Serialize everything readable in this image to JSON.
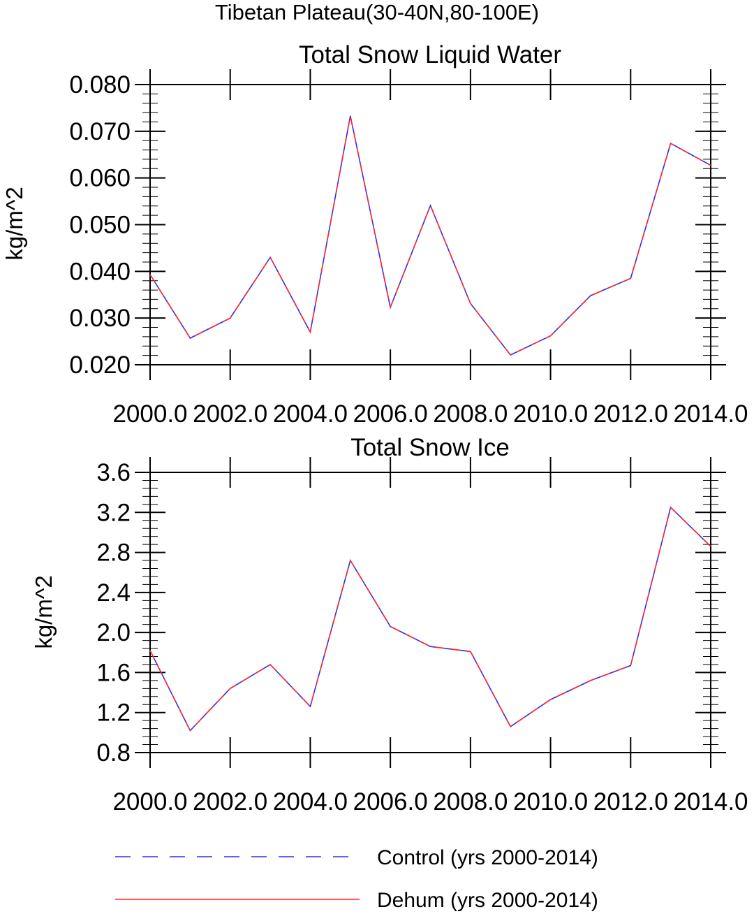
{
  "figure_title": "Tibetan Plateau(30-40N,80-100E)",
  "colors": {
    "control": "#2a2aff",
    "dehum": "#ff2a2a"
  },
  "legend": [
    {
      "key": "control",
      "label": "Control (yrs 2000-2014)",
      "style": "dashed"
    },
    {
      "key": "dehum",
      "label": "Dehum (yrs 2000-2014)",
      "style": "solid"
    }
  ],
  "chart_data": [
    {
      "type": "line",
      "title": "Total Snow Liquid Water",
      "xlabel": "",
      "ylabel": "kg/m^2",
      "xlim": [
        2000,
        2014
      ],
      "ylim": [
        0.02,
        0.08
      ],
      "yticks": [
        0.02,
        0.03,
        0.04,
        0.05,
        0.06,
        0.07,
        0.08
      ],
      "ytick_labels": [
        "0.020",
        "0.030",
        "0.040",
        "0.050",
        "0.060",
        "0.070",
        "0.080"
      ],
      "xticks": [
        2000,
        2002,
        2004,
        2006,
        2008,
        2010,
        2012,
        2014
      ],
      "xtick_labels": [
        "2000.0",
        "2002.0",
        "2004.0",
        "2006.0",
        "2008.0",
        "2010.0",
        "2012.0",
        "2014.0"
      ],
      "x": [
        2000,
        2001,
        2002,
        2003,
        2004,
        2005,
        2006,
        2007,
        2008,
        2009,
        2010,
        2011,
        2012,
        2013,
        2014
      ],
      "series": [
        {
          "name": "Control (yrs 2000-2014)",
          "values": [
            0.0393,
            0.0257,
            0.03,
            0.043,
            0.027,
            0.0733,
            0.0323,
            0.0541,
            0.0331,
            0.0221,
            0.0262,
            0.0348,
            0.0385,
            0.0674,
            0.0627
          ]
        },
        {
          "name": "Dehum (yrs 2000-2014)",
          "values": [
            0.0393,
            0.0257,
            0.03,
            0.043,
            0.027,
            0.0733,
            0.0323,
            0.0541,
            0.0331,
            0.0221,
            0.0262,
            0.0348,
            0.0385,
            0.0674,
            0.0627
          ]
        }
      ]
    },
    {
      "type": "line",
      "title": "Total Snow Ice",
      "xlabel": "",
      "ylabel": "kg/m^2",
      "xlim": [
        2000,
        2014
      ],
      "ylim": [
        0.8,
        3.6
      ],
      "yticks": [
        0.8,
        1.2,
        1.6,
        2.0,
        2.4,
        2.8,
        3.2,
        3.6
      ],
      "ytick_labels": [
        "0.8",
        "1.2",
        "1.6",
        "2.0",
        "2.4",
        "2.8",
        "3.2",
        "3.6"
      ],
      "xticks": [
        2000,
        2002,
        2004,
        2006,
        2008,
        2010,
        2012,
        2014
      ],
      "xtick_labels": [
        "2000.0",
        "2002.0",
        "2004.0",
        "2006.0",
        "2008.0",
        "2010.0",
        "2012.0",
        "2014.0"
      ],
      "x": [
        2000,
        2001,
        2002,
        2003,
        2004,
        2005,
        2006,
        2007,
        2008,
        2009,
        2010,
        2011,
        2012,
        2013,
        2014
      ],
      "series": [
        {
          "name": "Control (yrs 2000-2014)",
          "values": [
            1.82,
            1.02,
            1.44,
            1.68,
            1.26,
            2.72,
            2.06,
            1.86,
            1.81,
            1.06,
            1.33,
            1.52,
            1.67,
            3.25,
            2.86
          ]
        },
        {
          "name": "Dehum (yrs 2000-2014)",
          "values": [
            1.82,
            1.02,
            1.44,
            1.68,
            1.26,
            2.72,
            2.06,
            1.86,
            1.81,
            1.06,
            1.33,
            1.52,
            1.67,
            3.25,
            2.86
          ]
        }
      ]
    }
  ]
}
